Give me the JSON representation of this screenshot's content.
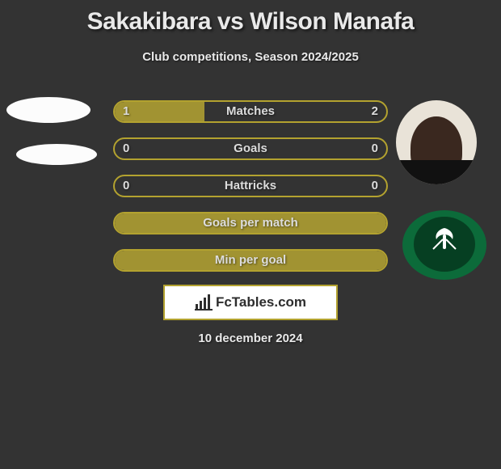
{
  "title": "Sakakibara vs Wilson Manafa",
  "subtitle": "Club competitions, Season 2024/2025",
  "date": "10 december 2024",
  "watermark": "FcTables.com",
  "colors": {
    "background": "#333333",
    "text": "#e9e9e9",
    "bar_border": "#b3a22f",
    "bar_fill": "#a19332",
    "wm_border": "#b3a22f",
    "badge_green_outer": "#0c6b3a",
    "badge_green_inner": "#063f22"
  },
  "rows": [
    {
      "label": "Matches",
      "left": "1",
      "right": "2",
      "fill_pct": 33
    },
    {
      "label": "Goals",
      "left": "0",
      "right": "0",
      "fill_pct": 0
    },
    {
      "label": "Hattricks",
      "left": "0",
      "right": "0",
      "fill_pct": 0
    },
    {
      "label": "Goals per match",
      "left": "",
      "right": "",
      "fill_pct": 100
    },
    {
      "label": "Min per goal",
      "left": "",
      "right": "",
      "fill_pct": 100
    }
  ],
  "left_side": {
    "photo_name": "player-1-photo-placeholder",
    "badge_name": "player-1-club-badge-placeholder"
  },
  "right_side": {
    "photo_name": "player-2-photo",
    "badge_name": "player-2-club-badge"
  }
}
